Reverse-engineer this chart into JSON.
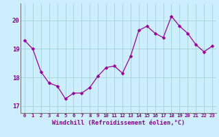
{
  "x": [
    0,
    1,
    2,
    3,
    4,
    5,
    6,
    7,
    8,
    9,
    10,
    11,
    12,
    13,
    14,
    15,
    16,
    17,
    18,
    19,
    20,
    21,
    22,
    23
  ],
  "y": [
    19.3,
    19.0,
    18.2,
    17.8,
    17.7,
    17.25,
    17.45,
    17.45,
    17.65,
    18.05,
    18.35,
    18.4,
    18.15,
    18.75,
    19.65,
    19.8,
    19.55,
    19.4,
    20.15,
    19.8,
    19.55,
    19.15,
    18.9,
    19.1
  ],
  "line_color": "#990099",
  "marker_color": "#990099",
  "bg_color": "#cceeff",
  "grid_color": "#99cccc",
  "xlabel": "Windchill (Refroidissement éolien,°C)",
  "xlabel_color": "#880088",
  "tick_color": "#880088",
  "ylim": [
    16.75,
    20.6
  ],
  "xlim": [
    -0.5,
    23.5
  ],
  "yticks": [
    17,
    18,
    19,
    20
  ],
  "xticks": [
    0,
    1,
    2,
    3,
    4,
    5,
    6,
    7,
    8,
    9,
    10,
    11,
    12,
    13,
    14,
    15,
    16,
    17,
    18,
    19,
    20,
    21,
    22,
    23
  ]
}
